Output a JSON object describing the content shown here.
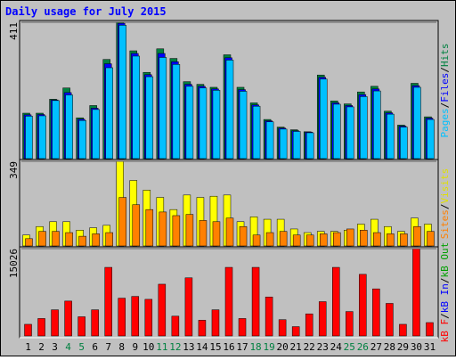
{
  "title": "Daily usage for July 2015",
  "separator": "/",
  "categories": [
    "1",
    "2",
    "3",
    "4",
    "5",
    "6",
    "7",
    "8",
    "9",
    "10",
    "11",
    "12",
    "13",
    "14",
    "15",
    "16",
    "17",
    "18",
    "19",
    "20",
    "21",
    "22",
    "23",
    "24",
    "25",
    "26",
    "27",
    "28",
    "29",
    "30",
    "31"
  ],
  "category_colors": [
    "#000000",
    "#000000",
    "#000000",
    "#008040",
    "#008040",
    "#000000",
    "#000000",
    "#000000",
    "#000000",
    "#000000",
    "#008040",
    "#008040",
    "#000000",
    "#000000",
    "#000000",
    "#000000",
    "#000000",
    "#008040",
    "#008040",
    "#000000",
    "#000000",
    "#000000",
    "#000000",
    "#000000",
    "#008040",
    "#008040",
    "#000000",
    "#000000",
    "#000000",
    "#000000",
    "#000000"
  ],
  "chart_data": [
    {
      "type": "bar",
      "ylim": [
        0,
        411
      ],
      "yticks": [
        411
      ],
      "series": [
        {
          "name": "Hits",
          "color": "#008040",
          "values": [
            137,
            137,
            179,
            213,
            123,
            160,
            299,
            411,
            325,
            260,
            331,
            302,
            232,
            224,
            215,
            313,
            215,
            168,
            118,
            95,
            87,
            81,
            252,
            174,
            165,
            201,
            218,
            143,
            101,
            227,
            126
          ]
        },
        {
          "name": "Files",
          "color": "#0000ff",
          "values": [
            132,
            133,
            177,
            199,
            119,
            152,
            286,
            408,
            317,
            253,
            317,
            292,
            224,
            218,
            210,
            304,
            208,
            162,
            114,
            92,
            84,
            80,
            245,
            168,
            160,
            193,
            210,
            138,
            98,
            220,
            122
          ]
        },
        {
          "name": "Pages",
          "color": "#00c0ff",
          "values": [
            128,
            129,
            175,
            192,
            115,
            148,
            274,
            402,
            309,
            247,
            305,
            284,
            218,
            213,
            206,
            297,
            203,
            158,
            111,
            89,
            82,
            78,
            240,
            164,
            156,
            187,
            204,
            134,
            95,
            215,
            118
          ]
        }
      ]
    },
    {
      "type": "bar",
      "ylim": [
        0,
        349
      ],
      "yticks": [
        349
      ],
      "series": [
        {
          "name": "Visits",
          "color": "#ffff00",
          "values": [
            45,
            80,
            100,
            100,
            65,
            75,
            85,
            349,
            270,
            230,
            200,
            150,
            210,
            200,
            205,
            210,
            100,
            120,
            110,
            110,
            70,
            55,
            60,
            60,
            65,
            90,
            110,
            80,
            60,
            115,
            90
          ]
        },
        {
          "name": "Sites",
          "color": "#ff8000",
          "values": [
            30,
            60,
            60,
            55,
            40,
            50,
            55,
            200,
            170,
            150,
            140,
            125,
            130,
            105,
            100,
            115,
            80,
            45,
            55,
            60,
            45,
            45,
            50,
            55,
            70,
            65,
            55,
            50,
            50,
            80,
            60
          ]
        }
      ]
    },
    {
      "type": "bar",
      "ylim": [
        0,
        15026
      ],
      "yticks": [
        15026
      ],
      "series": [
        {
          "name": "kB F",
          "color": "#ff0000",
          "values": [
            2000,
            3000,
            4500,
            6000,
            3300,
            4500,
            11800,
            6500,
            6800,
            6300,
            8900,
            3400,
            10000,
            2700,
            4500,
            11800,
            3000,
            11800,
            6700,
            2800,
            1600,
            3800,
            5900,
            11800,
            4200,
            10600,
            8100,
            5600,
            2000,
            15026,
            2300
          ]
        },
        {
          "name": "kB In",
          "color": "#0000ff"
        },
        {
          "name": "kB Out",
          "color": "#00a000"
        }
      ]
    }
  ]
}
